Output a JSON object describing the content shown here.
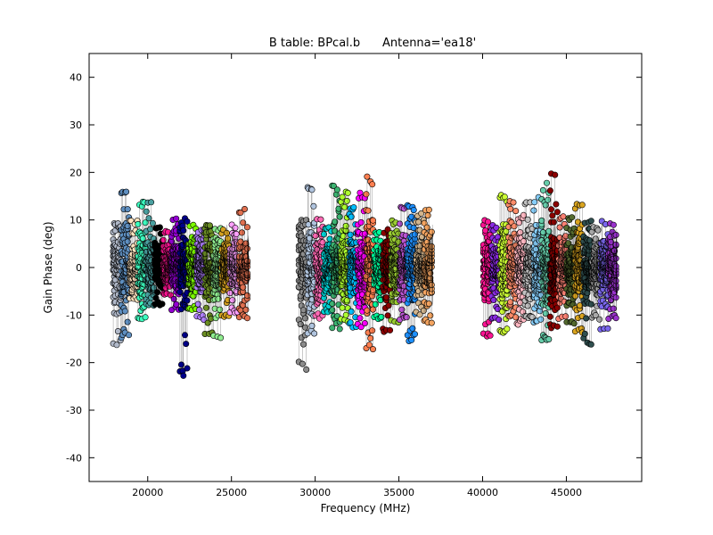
{
  "chart_data": {
    "type": "scatter",
    "title": "B table: BPcal.b      Antenna='ea18'",
    "xlabel": "Frequency (MHz)",
    "ylabel": "Gain Phase (deg)",
    "xlim": [
      16500,
      49500
    ],
    "ylim": [
      -45,
      45
    ],
    "xticks": [
      20000,
      25000,
      30000,
      35000,
      40000,
      45000
    ],
    "yticks": [
      -40,
      -30,
      -20,
      -10,
      0,
      10,
      20,
      30,
      40
    ],
    "grid": false,
    "legend": "none",
    "marker": "circle",
    "band_groups": [
      {
        "freq_range": [
          17900,
          26000
        ],
        "phase_range": [
          -23,
          16.5
        ]
      },
      {
        "freq_range": [
          29000,
          37000
        ],
        "phase_range": [
          -22,
          19.5
        ]
      },
      {
        "freq_range": [
          40000,
          48000
        ],
        "phase_range": [
          -16.5,
          21
        ]
      }
    ],
    "series": [
      {
        "freq_range": [
          17900,
          18400
        ],
        "phase_range": [
          -16.5,
          9.5
        ],
        "color": "#b0b8c8"
      },
      {
        "freq_range": [
          18400,
          18900
        ],
        "phase_range": [
          -15,
          16.5
        ],
        "color": "#5f8fc0"
      },
      {
        "freq_range": [
          18900,
          19400
        ],
        "phase_range": [
          -7,
          10
        ],
        "color": "#ffe4c0"
      },
      {
        "freq_range": [
          19400,
          19900
        ],
        "phase_range": [
          -11,
          14.5
        ],
        "color": "#3cffc0"
      },
      {
        "freq_range": [
          19900,
          20400
        ],
        "phase_range": [
          -8,
          14
        ],
        "color": "#4aa0a0"
      },
      {
        "freq_range": [
          20400,
          20900
        ],
        "phase_range": [
          -8,
          9
        ],
        "color": "#000000"
      },
      {
        "freq_range": [
          20900,
          21400
        ],
        "phase_range": [
          -6,
          8
        ],
        "color": "#ff1493"
      },
      {
        "freq_range": [
          21400,
          21900
        ],
        "phase_range": [
          -9,
          11
        ],
        "color": "#9400d3"
      },
      {
        "freq_range": [
          21900,
          22400
        ],
        "phase_range": [
          -23,
          10.5
        ],
        "color": "#00008b"
      },
      {
        "freq_range": [
          22400,
          22900
        ],
        "phase_range": [
          -9,
          9
        ],
        "color": "#7cfc00"
      },
      {
        "freq_range": [
          22900,
          23400
        ],
        "phase_range": [
          -11,
          8
        ],
        "color": "#b080ff"
      },
      {
        "freq_range": [
          23400,
          23900
        ],
        "phase_range": [
          -14,
          9
        ],
        "color": "#6b8e23"
      },
      {
        "freq_range": [
          23900,
          24400
        ],
        "phase_range": [
          -15,
          8.5
        ],
        "color": "#90ee90"
      },
      {
        "freq_range": [
          24400,
          24900
        ],
        "phase_range": [
          -11,
          8
        ],
        "color": "#d4a020"
      },
      {
        "freq_range": [
          24900,
          25400
        ],
        "phase_range": [
          -10,
          9
        ],
        "color": "#ffa0ff"
      },
      {
        "freq_range": [
          25400,
          26000
        ],
        "phase_range": [
          -11,
          12.5
        ],
        "color": "#e07050"
      },
      {
        "freq_range": [
          29000,
          29500
        ],
        "phase_range": [
          -22,
          10
        ],
        "color": "#8c8c8c"
      },
      {
        "freq_range": [
          29500,
          30000
        ],
        "phase_range": [
          -14,
          17
        ],
        "color": "#b0c4de"
      },
      {
        "freq_range": [
          30000,
          30500
        ],
        "phase_range": [
          -11,
          11
        ],
        "color": "#ff69b4"
      },
      {
        "freq_range": [
          30500,
          31000
        ],
        "phase_range": [
          -10,
          9
        ],
        "color": "#00ced1"
      },
      {
        "freq_range": [
          31000,
          31500
        ],
        "phase_range": [
          -13,
          17.5
        ],
        "color": "#3cb371"
      },
      {
        "freq_range": [
          31500,
          32000
        ],
        "phase_range": [
          -12,
          16
        ],
        "color": "#adff2f"
      },
      {
        "freq_range": [
          32000,
          32500
        ],
        "phase_range": [
          -13,
          13
        ],
        "color": "#00bfff"
      },
      {
        "freq_range": [
          32500,
          33000
        ],
        "phase_range": [
          -13,
          16
        ],
        "color": "#ff00ff"
      },
      {
        "freq_range": [
          33000,
          33500
        ],
        "phase_range": [
          -17.5,
          19.5
        ],
        "color": "#ff7f50"
      },
      {
        "freq_range": [
          33500,
          34000
        ],
        "phase_range": [
          -11,
          8
        ],
        "color": "#00fa9a"
      },
      {
        "freq_range": [
          34000,
          34500
        ],
        "phase_range": [
          -14,
          8
        ],
        "color": "#8b0000"
      },
      {
        "freq_range": [
          34500,
          35000
        ],
        "phase_range": [
          -12,
          10
        ],
        "color": "#9acd32"
      },
      {
        "freq_range": [
          35000,
          35500
        ],
        "phase_range": [
          -11,
          13
        ],
        "color": "#ba55d3"
      },
      {
        "freq_range": [
          35500,
          36000
        ],
        "phase_range": [
          -15.5,
          14
        ],
        "color": "#1e90ff"
      },
      {
        "freq_range": [
          36000,
          36500
        ],
        "phase_range": [
          -10,
          12
        ],
        "color": "#d2b48c"
      },
      {
        "freq_range": [
          36500,
          37000
        ],
        "phase_range": [
          -12,
          12.5
        ],
        "color": "#f4a460"
      },
      {
        "freq_range": [
          40000,
          40500
        ],
        "phase_range": [
          -15,
          10
        ],
        "color": "#ff1493"
      },
      {
        "freq_range": [
          40500,
          41000
        ],
        "phase_range": [
          -11,
          9
        ],
        "color": "#8a2be2"
      },
      {
        "freq_range": [
          41000,
          41500
        ],
        "phase_range": [
          -14,
          16
        ],
        "color": "#ccff33"
      },
      {
        "freq_range": [
          41500,
          42000
        ],
        "phase_range": [
          -11,
          15
        ],
        "color": "#ff8c69"
      },
      {
        "freq_range": [
          42000,
          42500
        ],
        "phase_range": [
          -12,
          11
        ],
        "color": "#ffb6c1"
      },
      {
        "freq_range": [
          42500,
          43000
        ],
        "phase_range": [
          -11,
          14
        ],
        "color": "#c0c0c0"
      },
      {
        "freq_range": [
          43000,
          43500
        ],
        "phase_range": [
          -12,
          15
        ],
        "color": "#87cefa"
      },
      {
        "freq_range": [
          43500,
          44000
        ],
        "phase_range": [
          -15.5,
          18
        ],
        "color": "#66cdaa"
      },
      {
        "freq_range": [
          44000,
          44500
        ],
        "phase_range": [
          -13,
          21
        ],
        "color": "#8b0000"
      },
      {
        "freq_range": [
          44500,
          45000
        ],
        "phase_range": [
          -11,
          11
        ],
        "color": "#fa8072"
      },
      {
        "freq_range": [
          45000,
          45500
        ],
        "phase_range": [
          -12,
          11
        ],
        "color": "#556b2f"
      },
      {
        "freq_range": [
          45500,
          46000
        ],
        "phase_range": [
          -14,
          14
        ],
        "color": "#daa520"
      },
      {
        "freq_range": [
          46000,
          46500
        ],
        "phase_range": [
          -16.5,
          10
        ],
        "color": "#2f4f4f"
      },
      {
        "freq_range": [
          46500,
          47000
        ],
        "phase_range": [
          -11,
          9
        ],
        "color": "#a9a9a9"
      },
      {
        "freq_range": [
          47000,
          47500
        ],
        "phase_range": [
          -13,
          10
        ],
        "color": "#7b68ee"
      },
      {
        "freq_range": [
          47500,
          48000
        ],
        "phase_range": [
          -11,
          9.5
        ],
        "color": "#9932cc"
      }
    ]
  }
}
